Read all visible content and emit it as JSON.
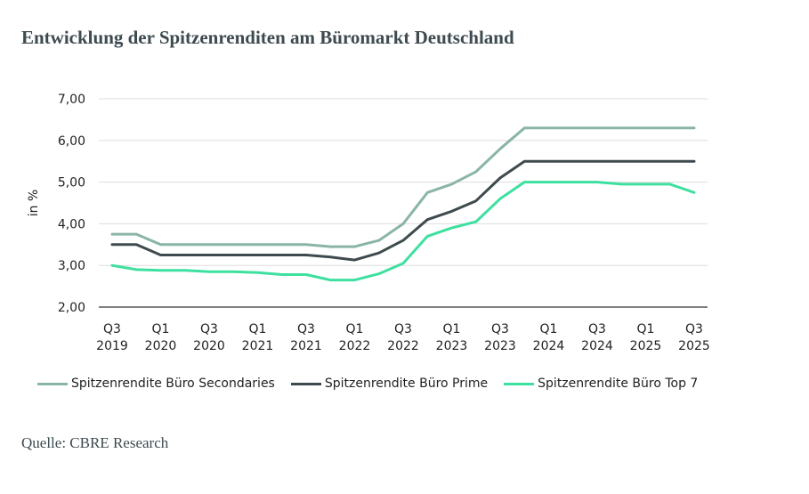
{
  "page": {
    "title": "Entwicklung der Spitzenrenditen am Büromarkt Deutschland",
    "source": "Quelle: CBRE Research"
  },
  "chart_data": {
    "type": "line",
    "title": "",
    "xlabel": "",
    "ylabel": "in %",
    "ylim": [
      2.0,
      7.0
    ],
    "yticks": [
      "2,00",
      "3,00",
      "4,00",
      "5,00",
      "6,00",
      "7,00"
    ],
    "grid": true,
    "legend_position": "bottom",
    "x": [
      "Q3 2019",
      "Q4 2019",
      "Q1 2020",
      "Q2 2020",
      "Q3 2020",
      "Q4 2020",
      "Q1 2021",
      "Q2 2021",
      "Q3 2021",
      "Q4 2021",
      "Q1 2022",
      "Q2 2022",
      "Q3 2022",
      "Q4 2022",
      "Q1 2023",
      "Q2 2023",
      "Q3 2023",
      "Q4 2023",
      "Q1 2024",
      "Q2 2024",
      "Q3 2024",
      "Q4 2024",
      "Q1 2025",
      "Q2 2025",
      "Q3 2025"
    ],
    "xtick_labels": [
      {
        "quarter": "Q3",
        "year": "2019"
      },
      {
        "quarter": "Q1",
        "year": "2020"
      },
      {
        "quarter": "Q3",
        "year": "2020"
      },
      {
        "quarter": "Q1",
        "year": "2021"
      },
      {
        "quarter": "Q3",
        "year": "2021"
      },
      {
        "quarter": "Q1",
        "year": "2022"
      },
      {
        "quarter": "Q3",
        "year": "2022"
      },
      {
        "quarter": "Q1",
        "year": "2023"
      },
      {
        "quarter": "Q3",
        "year": "2023"
      },
      {
        "quarter": "Q1",
        "year": "2024"
      },
      {
        "quarter": "Q3",
        "year": "2024"
      },
      {
        "quarter": "Q1",
        "year": "2025"
      },
      {
        "quarter": "Q3",
        "year": "2025"
      }
    ],
    "series": [
      {
        "name": "Spitzenrendite Büro Secondaries",
        "color": "#8ab5a6",
        "values": [
          3.75,
          3.75,
          3.5,
          3.5,
          3.5,
          3.5,
          3.5,
          3.5,
          3.5,
          3.45,
          3.45,
          3.6,
          4.0,
          4.75,
          4.95,
          5.25,
          5.8,
          6.3,
          6.3,
          6.3,
          6.3,
          6.3,
          6.3,
          6.3,
          6.3
        ]
      },
      {
        "name": "Spitzenrendite Büro Prime",
        "color": "#3f4a4f",
        "values": [
          3.5,
          3.5,
          3.25,
          3.25,
          3.25,
          3.25,
          3.25,
          3.25,
          3.25,
          3.2,
          3.13,
          3.3,
          3.6,
          4.1,
          4.3,
          4.55,
          5.1,
          5.5,
          5.5,
          5.5,
          5.5,
          5.5,
          5.5,
          5.5,
          5.5
        ]
      },
      {
        "name": "Spitzenrendite Büro Top 7",
        "color": "#3ee0a0",
        "values": [
          3.0,
          2.9,
          2.88,
          2.88,
          2.85,
          2.85,
          2.83,
          2.78,
          2.78,
          2.65,
          2.65,
          2.8,
          3.05,
          3.7,
          3.9,
          4.05,
          4.6,
          5.0,
          5.0,
          5.0,
          5.0,
          4.95,
          4.95,
          4.95,
          4.75
        ]
      }
    ]
  }
}
